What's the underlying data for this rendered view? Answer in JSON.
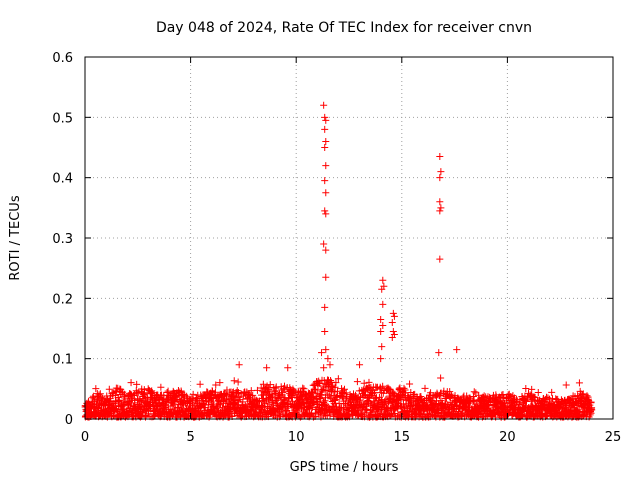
{
  "chart_data": {
    "type": "scatter",
    "title": "Day 048 of 2024, Rate Of TEC Index for receiver cnvn",
    "xlabel": "GPS time / hours",
    "ylabel": "ROTI / TECUs",
    "xlim": [
      0,
      25
    ],
    "ylim": [
      0,
      0.6
    ],
    "xticks": [
      "0",
      "5",
      "10",
      "15",
      "20",
      "25"
    ],
    "yticks": [
      "0",
      "0.1",
      "0.2",
      "0.3",
      "0.4",
      "0.5",
      "0.6"
    ],
    "grid": true,
    "marker": "+",
    "color": "#ff0000",
    "series": [
      {
        "points": [
          [
            11.3,
            0.52
          ],
          [
            11.35,
            0.5
          ],
          [
            11.4,
            0.495
          ],
          [
            11.35,
            0.48
          ],
          [
            11.4,
            0.46
          ],
          [
            11.35,
            0.45
          ],
          [
            11.4,
            0.42
          ],
          [
            11.35,
            0.395
          ],
          [
            11.4,
            0.375
          ],
          [
            11.35,
            0.345
          ],
          [
            11.4,
            0.34
          ],
          [
            11.3,
            0.29
          ],
          [
            11.4,
            0.28
          ],
          [
            11.4,
            0.235
          ],
          [
            11.35,
            0.185
          ],
          [
            11.35,
            0.145
          ],
          [
            11.4,
            0.115
          ],
          [
            11.2,
            0.11
          ],
          [
            11.5,
            0.1
          ],
          [
            11.6,
            0.09
          ],
          [
            11.3,
            0.085
          ],
          [
            14.1,
            0.23
          ],
          [
            14.15,
            0.22
          ],
          [
            14.05,
            0.215
          ],
          [
            14.1,
            0.19
          ],
          [
            14.0,
            0.165
          ],
          [
            14.1,
            0.155
          ],
          [
            14.0,
            0.145
          ],
          [
            14.05,
            0.12
          ],
          [
            14.0,
            0.1
          ],
          [
            14.6,
            0.175
          ],
          [
            14.65,
            0.17
          ],
          [
            14.55,
            0.16
          ],
          [
            14.6,
            0.145
          ],
          [
            14.65,
            0.14
          ],
          [
            14.55,
            0.135
          ],
          [
            16.8,
            0.435
          ],
          [
            16.85,
            0.41
          ],
          [
            16.8,
            0.4
          ],
          [
            16.8,
            0.36
          ],
          [
            16.85,
            0.35
          ],
          [
            16.8,
            0.345
          ],
          [
            16.8,
            0.265
          ],
          [
            16.75,
            0.11
          ],
          [
            17.6,
            0.115
          ],
          [
            7.3,
            0.09
          ],
          [
            8.6,
            0.085
          ],
          [
            9.6,
            0.085
          ],
          [
            13.0,
            0.09
          ]
        ]
      }
    ],
    "background_band": [
      [
        0.0,
        0.02
      ],
      [
        0.5,
        0.04
      ],
      [
        1.0,
        0.035
      ],
      [
        1.5,
        0.05
      ],
      [
        2.0,
        0.04
      ],
      [
        2.5,
        0.045
      ],
      [
        3.0,
        0.05
      ],
      [
        3.5,
        0.035
      ],
      [
        4.0,
        0.045
      ],
      [
        4.5,
        0.045
      ],
      [
        5.0,
        0.03
      ],
      [
        5.5,
        0.04
      ],
      [
        6.0,
        0.045
      ],
      [
        6.5,
        0.04
      ],
      [
        7.0,
        0.045
      ],
      [
        7.5,
        0.045
      ],
      [
        8.0,
        0.045
      ],
      [
        8.5,
        0.055
      ],
      [
        9.0,
        0.05
      ],
      [
        9.5,
        0.055
      ],
      [
        10.0,
        0.045
      ],
      [
        10.5,
        0.05
      ],
      [
        11.0,
        0.06
      ],
      [
        11.5,
        0.065
      ],
      [
        12.0,
        0.055
      ],
      [
        12.5,
        0.04
      ],
      [
        13.0,
        0.045
      ],
      [
        13.5,
        0.05
      ],
      [
        14.0,
        0.055
      ],
      [
        14.5,
        0.045
      ],
      [
        15.0,
        0.05
      ],
      [
        15.5,
        0.04
      ],
      [
        16.0,
        0.035
      ],
      [
        16.5,
        0.04
      ],
      [
        17.0,
        0.045
      ],
      [
        17.5,
        0.04
      ],
      [
        18.0,
        0.035
      ],
      [
        18.5,
        0.045
      ],
      [
        19.0,
        0.035
      ],
      [
        19.5,
        0.035
      ],
      [
        20.0,
        0.04
      ],
      [
        20.5,
        0.035
      ],
      [
        21.0,
        0.04
      ],
      [
        21.5,
        0.03
      ],
      [
        22.0,
        0.035
      ],
      [
        22.5,
        0.03
      ],
      [
        23.0,
        0.035
      ],
      [
        23.5,
        0.045
      ],
      [
        24.0,
        0.03
      ]
    ],
    "x_data_extent": [
      0,
      24
    ]
  }
}
